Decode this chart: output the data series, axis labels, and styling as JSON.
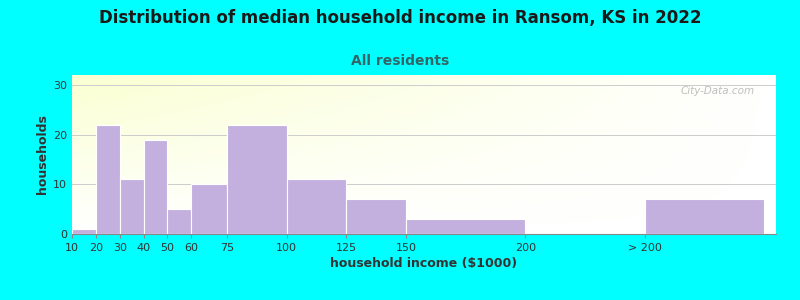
{
  "title": "Distribution of median household income in Ransom, KS in 2022",
  "subtitle": "All residents",
  "xlabel": "household income ($1000)",
  "ylabel": "households",
  "background_color": "#00FFFF",
  "bar_color": "#C4B0DF",
  "bar_edge_color": "#C4B0DF",
  "values": [
    1,
    22,
    11,
    19,
    5,
    10,
    22,
    11,
    7,
    3,
    0,
    7
  ],
  "bar_widths": [
    10,
    10,
    10,
    10,
    10,
    15,
    25,
    25,
    25,
    50,
    50,
    50
  ],
  "bar_lefts": [
    10,
    20,
    30,
    40,
    50,
    60,
    75,
    100,
    125,
    150,
    200,
    250
  ],
  "xlim": [
    10,
    305
  ],
  "ylim": [
    0,
    32
  ],
  "yticks": [
    0,
    10,
    20,
    30
  ],
  "xtick_positions": [
    10,
    20,
    30,
    40,
    50,
    60,
    75,
    100,
    125,
    150,
    200,
    250
  ],
  "xtick_labels": [
    "10",
    "20",
    "30",
    "40",
    "50",
    "60",
    "75",
    "100",
    "125",
    "150",
    "200",
    "> 200"
  ],
  "title_fontsize": 12,
  "subtitle_fontsize": 10,
  "axis_label_fontsize": 9,
  "tick_fontsize": 8,
  "watermark_text": "City-Data.com"
}
